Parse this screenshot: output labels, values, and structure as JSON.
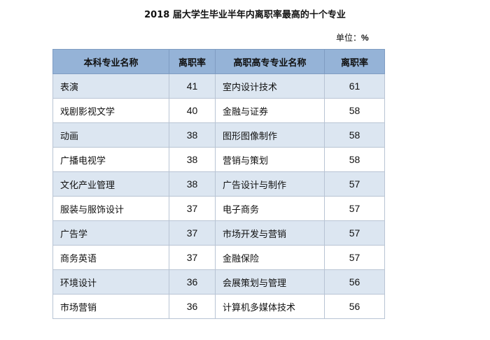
{
  "title": "2018 届大学生毕业半年内离职率最高的十个专业",
  "unit_label": "单位：",
  "unit_value": "%",
  "colors": {
    "header_bg": "#95b3d7",
    "row_alt_bg": "#dce6f1"
  },
  "table": {
    "headers": [
      "本科专业名称",
      "离职率",
      "高职高专专业名称",
      "离职率"
    ],
    "rows": [
      [
        "表演",
        "41",
        "室内设计技术",
        "61"
      ],
      [
        "戏剧影视文学",
        "40",
        "金融与证券",
        "58"
      ],
      [
        "动画",
        "38",
        "图形图像制作",
        "58"
      ],
      [
        "广播电视学",
        "38",
        "营销与策划",
        "58"
      ],
      [
        "文化产业管理",
        "38",
        "广告设计与制作",
        "57"
      ],
      [
        "服装与服饰设计",
        "37",
        "电子商务",
        "57"
      ],
      [
        "广告学",
        "37",
        "市场开发与营销",
        "57"
      ],
      [
        "商务英语",
        "37",
        "金融保险",
        "57"
      ],
      [
        "环境设计",
        "36",
        "会展策划与管理",
        "56"
      ],
      [
        "市场营销",
        "36",
        "计算机多媒体技术",
        "56"
      ]
    ]
  }
}
